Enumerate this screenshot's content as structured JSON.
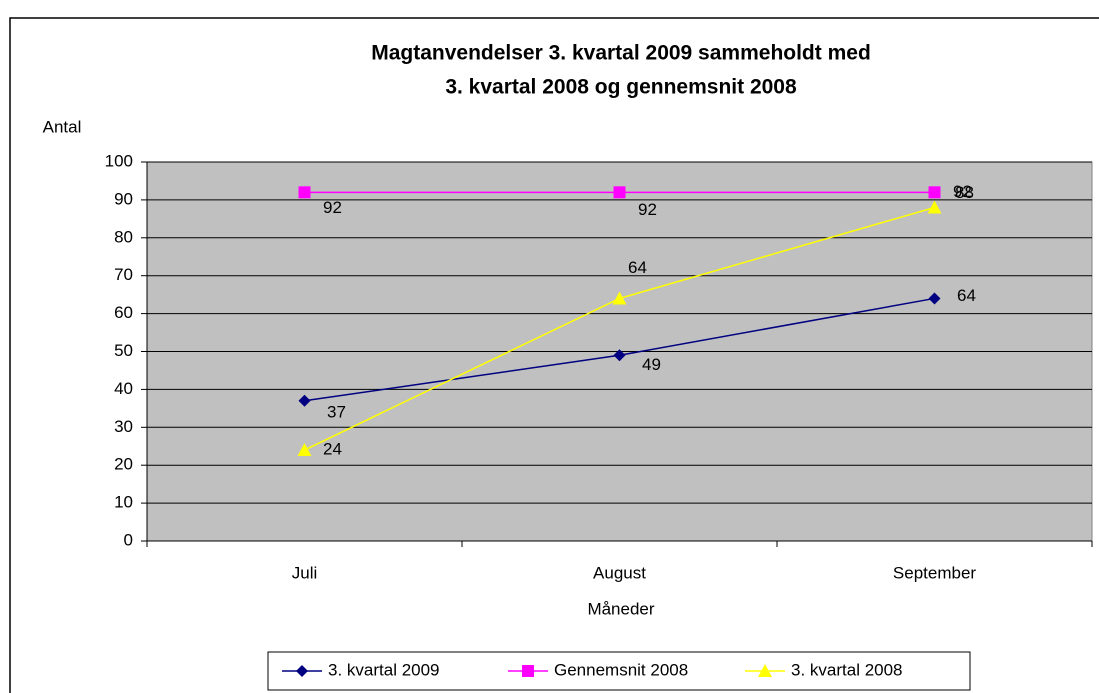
{
  "chart_data": {
    "type": "line",
    "title": [
      "Magtanvendelser 3. kvartal 2009 sammeholdt med",
      "3. kvartal 2008 og gennemsnit 2008"
    ],
    "y_label": "Antal",
    "x_label": "Måneder",
    "categories": [
      "Juli",
      "August",
      "September"
    ],
    "series": [
      {
        "name": "3. kvartal 2009",
        "color": "#000080",
        "marker": "diamond",
        "values": [
          37,
          49,
          64
        ]
      },
      {
        "name": "Gennemsnit 2008",
        "color": "#FF00FF",
        "marker": "square",
        "values": [
          92,
          92,
          92
        ]
      },
      {
        "name": "3. kvartal 2008",
        "color": "#FFFF00",
        "marker": "triangle",
        "values": [
          24,
          64,
          88
        ]
      }
    ],
    "ylim": [
      0,
      100
    ],
    "yticks": [
      0,
      10,
      20,
      30,
      40,
      50,
      60,
      70,
      80,
      90,
      100
    ],
    "grid": true,
    "legend": "bottom"
  }
}
